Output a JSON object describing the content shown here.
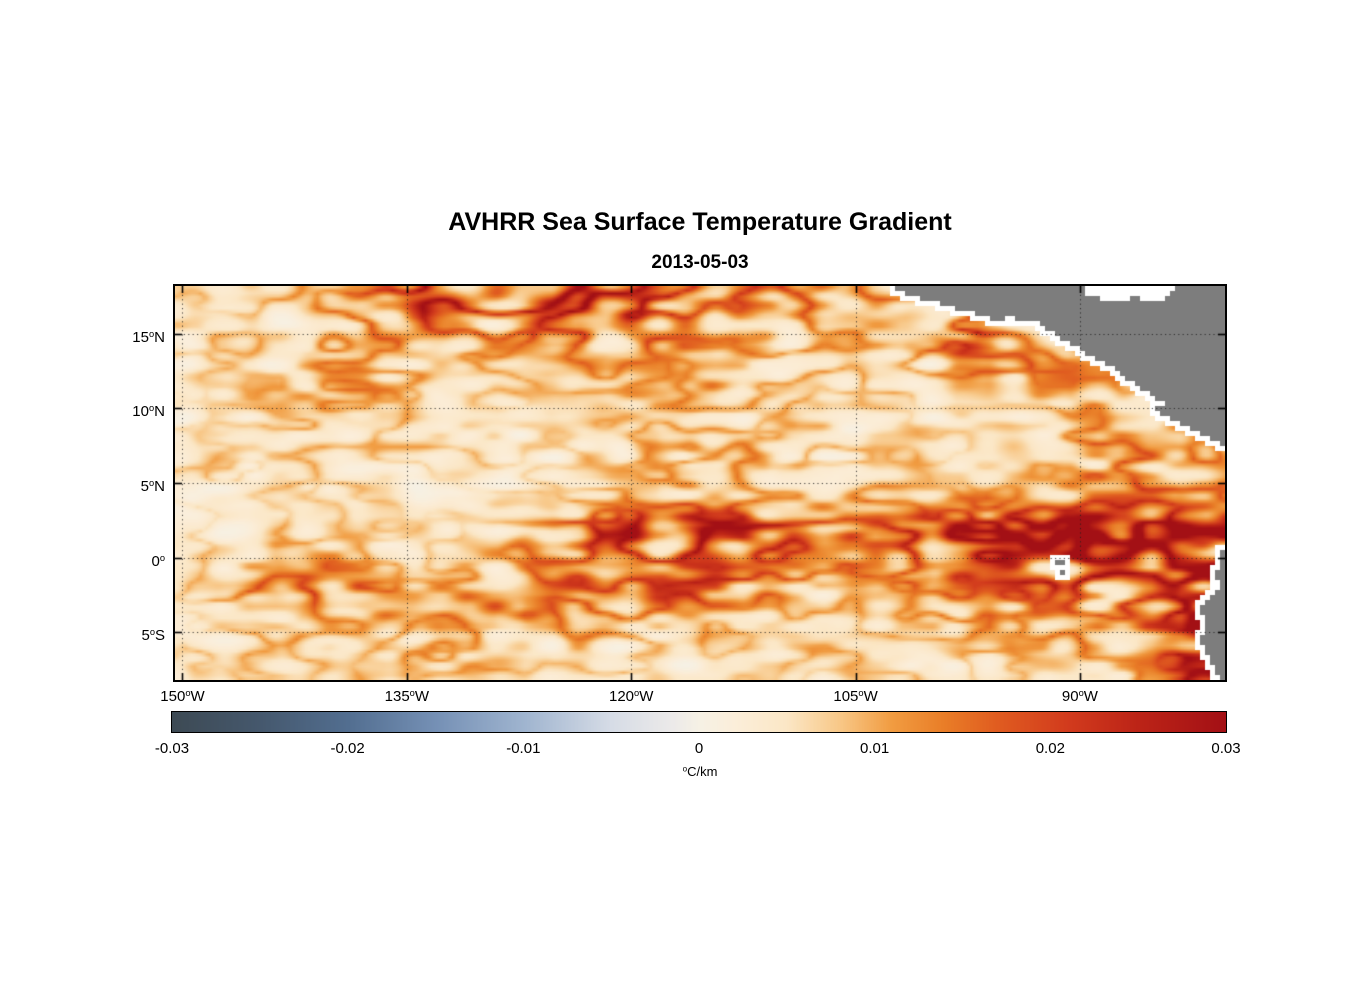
{
  "chart_data": {
    "type": "heatmap",
    "title": "AVHRR Sea Surface Temperature Gradient",
    "subtitle": "2013-05-03",
    "lon_range": [
      -150.5,
      -80.3
    ],
    "lat_range": [
      -8.2,
      18.2
    ],
    "x_ticks": [
      {
        "value": -150,
        "label": "150",
        "sup": "o",
        "suffix": "W"
      },
      {
        "value": -135,
        "label": "135",
        "sup": "o",
        "suffix": "W"
      },
      {
        "value": -120,
        "label": "120",
        "sup": "o",
        "suffix": "W"
      },
      {
        "value": -105,
        "label": "105",
        "sup": "o",
        "suffix": "W"
      },
      {
        "value": -90,
        "label": "90",
        "sup": "o",
        "suffix": "W"
      }
    ],
    "y_ticks": [
      {
        "value": 15,
        "label": "15",
        "sup": "o",
        "suffix": "N"
      },
      {
        "value": 10,
        "label": "10",
        "sup": "o",
        "suffix": "N"
      },
      {
        "value": 5,
        "label": "5",
        "sup": "o",
        "suffix": "N"
      },
      {
        "value": 0,
        "label": "0",
        "sup": "o",
        "suffix": ""
      },
      {
        "value": -5,
        "label": "5",
        "sup": "o",
        "suffix": "S"
      }
    ],
    "grid": true,
    "colorbar": {
      "min": -0.03,
      "max": 0.03,
      "ticks": [
        {
          "value": -0.03,
          "label": "-0.03"
        },
        {
          "value": -0.02,
          "label": "-0.02"
        },
        {
          "value": -0.01,
          "label": "-0.01"
        },
        {
          "value": 0,
          "label": "0"
        },
        {
          "value": 0.01,
          "label": "0.01"
        },
        {
          "value": 0.02,
          "label": "0.02"
        },
        {
          "value": 0.03,
          "label": "0.03"
        }
      ],
      "label_sup": "o",
      "label_text": "C/km"
    },
    "colormap_stops": [
      [
        -0.03,
        "#3d4a54"
      ],
      [
        -0.025,
        "#45586d"
      ],
      [
        -0.02,
        "#526e90"
      ],
      [
        -0.015,
        "#7590b5"
      ],
      [
        -0.01,
        "#9fb4cf"
      ],
      [
        -0.005,
        "#d6dce6"
      ],
      [
        -0.0015,
        "#eceae9"
      ],
      [
        0.0,
        "#f6f1e5"
      ],
      [
        0.002,
        "#fbeeda"
      ],
      [
        0.005,
        "#fbe7c6"
      ],
      [
        0.008,
        "#f8c888"
      ],
      [
        0.011,
        "#f19c41"
      ],
      [
        0.014,
        "#e97d27"
      ],
      [
        0.017,
        "#e05c20"
      ],
      [
        0.021,
        "#d23b1d"
      ],
      [
        0.025,
        "#bc2417"
      ],
      [
        0.03,
        "#a31015"
      ]
    ],
    "field": {
      "comment": "coarse estimate of SST gradient magnitude, units 0.001 degC/km, rows north-to-south",
      "lon0": -149.5,
      "dlon": 1.95,
      "lat0": 17.25,
      "dlat": 1.95,
      "values_milli": [
        [
          6,
          6,
          7,
          8,
          9,
          10,
          12,
          14,
          15,
          14,
          13,
          14,
          15,
          16,
          15,
          16,
          17,
          16,
          15,
          14,
          13,
          12,
          11,
          10,
          9,
          8,
          8,
          9,
          6,
          5,
          5,
          5,
          5,
          5,
          5,
          5
        ],
        [
          5,
          6,
          6,
          7,
          8,
          9,
          10,
          12,
          13,
          12,
          11,
          10,
          11,
          12,
          13,
          14,
          14,
          13,
          12,
          11,
          10,
          9,
          9,
          8,
          8,
          9,
          10,
          14,
          10,
          7,
          6,
          6,
          5,
          5,
          5,
          5
        ],
        [
          5,
          5,
          6,
          6,
          7,
          8,
          9,
          10,
          10,
          9,
          9,
          8,
          8,
          9,
          9,
          10,
          10,
          10,
          9,
          9,
          8,
          8,
          7,
          7,
          7,
          7,
          8,
          9,
          9,
          8,
          8,
          7,
          6,
          6,
          5,
          5
        ],
        [
          4,
          5,
          5,
          6,
          6,
          7,
          8,
          8,
          8,
          8,
          7,
          7,
          7,
          7,
          8,
          8,
          8,
          8,
          8,
          7,
          7,
          7,
          6,
          6,
          6,
          6,
          6,
          7,
          8,
          9,
          10,
          12,
          10,
          7,
          6,
          6
        ],
        [
          4,
          4,
          5,
          5,
          6,
          6,
          7,
          7,
          7,
          7,
          6,
          6,
          6,
          6,
          7,
          7,
          7,
          7,
          7,
          6,
          6,
          6,
          6,
          5,
          5,
          5,
          6,
          6,
          7,
          8,
          9,
          10,
          9,
          8,
          7,
          7
        ],
        [
          4,
          4,
          4,
          5,
          5,
          5,
          6,
          6,
          6,
          6,
          6,
          5,
          5,
          5,
          6,
          6,
          6,
          6,
          6,
          6,
          5,
          5,
          5,
          5,
          5,
          5,
          5,
          6,
          6,
          7,
          7,
          8,
          8,
          8,
          8,
          8
        ],
        [
          4,
          4,
          4,
          4,
          5,
          5,
          5,
          5,
          5,
          5,
          5,
          5,
          5,
          5,
          5,
          5,
          6,
          6,
          6,
          6,
          5,
          5,
          5,
          5,
          5,
          6,
          6,
          6,
          6,
          7,
          7,
          7,
          7,
          8,
          8,
          8
        ],
        [
          4,
          4,
          4,
          4,
          4,
          5,
          5,
          5,
          5,
          5,
          5,
          5,
          6,
          6,
          7,
          7,
          8,
          8,
          8,
          8,
          8,
          8,
          8,
          8,
          8,
          8,
          9,
          9,
          9,
          9,
          9,
          9,
          10,
          10,
          10,
          10
        ],
        [
          4,
          4,
          4,
          5,
          5,
          5,
          5,
          5,
          6,
          6,
          7,
          8,
          10,
          13,
          15,
          16,
          17,
          17,
          16,
          16,
          15,
          15,
          15,
          16,
          16,
          17,
          18,
          18,
          19,
          20,
          22,
          22,
          20,
          18,
          18,
          20
        ],
        [
          6,
          7,
          7,
          8,
          8,
          8,
          7,
          7,
          7,
          8,
          9,
          10,
          12,
          13,
          13,
          12,
          11,
          11,
          11,
          12,
          12,
          12,
          12,
          13,
          13,
          14,
          15,
          16,
          17,
          18,
          20,
          18,
          16,
          15,
          16,
          22
        ],
        [
          8,
          9,
          10,
          10,
          10,
          10,
          10,
          10,
          10,
          10,
          11,
          11,
          11,
          12,
          12,
          12,
          12,
          12,
          12,
          11,
          10,
          10,
          9,
          9,
          9,
          9,
          10,
          10,
          11,
          12,
          13,
          13,
          13,
          13,
          15,
          24
        ],
        [
          5,
          5,
          6,
          6,
          6,
          6,
          6,
          6,
          6,
          7,
          7,
          7,
          7,
          7,
          7,
          7,
          7,
          7,
          7,
          7,
          7,
          6,
          6,
          6,
          6,
          7,
          7,
          7,
          8,
          8,
          9,
          10,
          11,
          12,
          15,
          25
        ],
        [
          4,
          5,
          5,
          5,
          5,
          5,
          5,
          6,
          6,
          6,
          6,
          6,
          6,
          6,
          6,
          6,
          6,
          6,
          6,
          6,
          6,
          6,
          6,
          6,
          6,
          6,
          6,
          6,
          7,
          7,
          8,
          9,
          10,
          12,
          16,
          24
        ],
        [
          4,
          4,
          5,
          5,
          5,
          5,
          5,
          5,
          5,
          6,
          6,
          6,
          6,
          6,
          6,
          6,
          6,
          6,
          6,
          6,
          6,
          5,
          5,
          5,
          5,
          6,
          6,
          6,
          6,
          7,
          8,
          8,
          9,
          11,
          14,
          20
        ]
      ]
    },
    "land_color": "#7d7d7d",
    "land_polygons": [
      [
        [
          -103.4,
          18.6
        ],
        [
          -101.5,
          17.6
        ],
        [
          -99.2,
          17.0
        ],
        [
          -97.2,
          16.4
        ],
        [
          -95.5,
          15.9
        ],
        [
          -94.6,
          16.1
        ],
        [
          -93.0,
          15.8
        ],
        [
          -91.5,
          14.9
        ],
        [
          -90.3,
          14.1
        ],
        [
          -88.6,
          13.2
        ],
        [
          -87.3,
          12.4
        ],
        [
          -86.5,
          11.7
        ],
        [
          -85.6,
          11.2
        ],
        [
          -85.0,
          10.8
        ],
        [
          -84.3,
          10.35
        ],
        [
          -85.2,
          10.1
        ],
        [
          -84.2,
          9.5
        ],
        [
          -83.2,
          9.0
        ],
        [
          -82.0,
          8.4
        ],
        [
          -81.1,
          7.9
        ],
        [
          -80.2,
          7.4
        ],
        [
          -79.2,
          7.1
        ],
        [
          -79.0,
          19.0
        ]
      ],
      [
        [
          -79.0,
          1.0
        ],
        [
          -79.9,
          0.9
        ],
        [
          -80.8,
          0.3
        ],
        [
          -80.7,
          -0.6
        ],
        [
          -80.95,
          -1.2
        ],
        [
          -80.7,
          -1.9
        ],
        [
          -81.3,
          -2.6
        ],
        [
          -81.9,
          -3.4
        ],
        [
          -81.6,
          -4.4
        ],
        [
          -81.9,
          -5.6
        ],
        [
          -81.5,
          -6.6
        ],
        [
          -81.1,
          -7.4
        ],
        [
          -80.4,
          -8.4
        ],
        [
          -79.0,
          -9.0
        ]
      ]
    ],
    "white_patches": [
      [
        [
          -89.8,
          18.6
        ],
        [
          -89.5,
          17.6
        ],
        [
          -88.0,
          17.2
        ],
        [
          -86.3,
          17.4
        ],
        [
          -85.0,
          17.1
        ],
        [
          -83.9,
          17.6
        ],
        [
          -83.6,
          18.6
        ]
      ]
    ],
    "islands": [
      [
        -91.45,
        -0.25,
        2
      ],
      [
        -91.15,
        -1.05,
        1
      ]
    ]
  }
}
